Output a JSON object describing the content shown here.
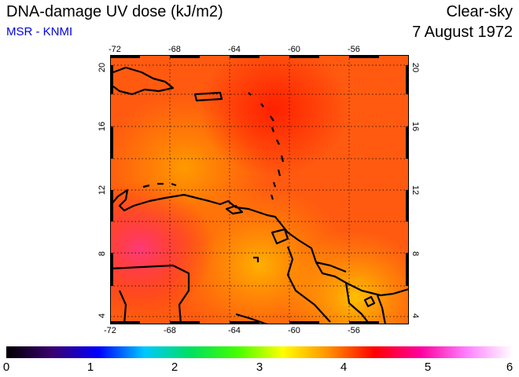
{
  "header": {
    "title": "DNA-damage UV dose (kJ/m2)",
    "source": "MSR - KNMI",
    "condition": "Clear-sky",
    "date": "7 August 1972"
  },
  "map": {
    "lon_ticks": [
      "-72",
      "-68",
      "-64",
      "-60",
      "-56"
    ],
    "lat_ticks": [
      "20",
      "16",
      "12",
      "8",
      "4"
    ],
    "lon_range": [
      -72,
      -52
    ],
    "lat_range": [
      3.5,
      20.5
    ]
  },
  "colorbar": {
    "labels": [
      "0",
      "1",
      "2",
      "3",
      "4",
      "5",
      "6"
    ],
    "min": 0,
    "max": 6,
    "colors": [
      "#000000",
      "#3a0070",
      "#0000ff",
      "#00c8ff",
      "#00e060",
      "#40ff00",
      "#ffff00",
      "#ff9000",
      "#ff0000",
      "#ff00a0",
      "#ff80ff",
      "#ffffff"
    ]
  }
}
